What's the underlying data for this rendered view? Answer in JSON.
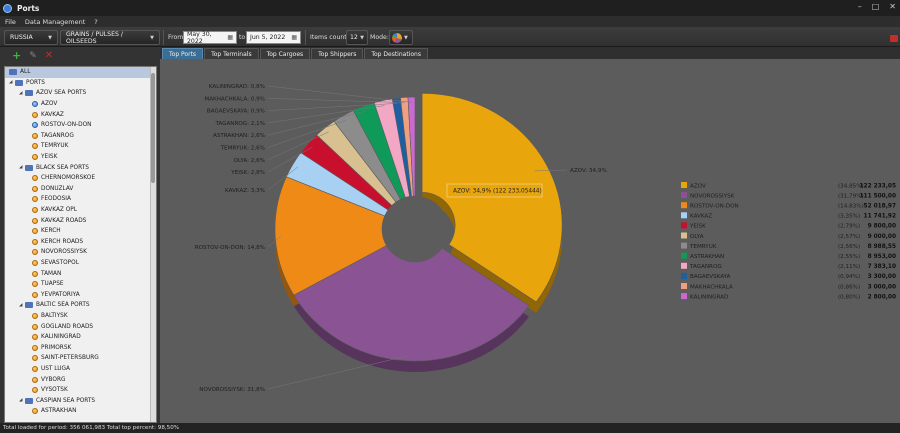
{
  "window": {
    "title": "Ports"
  },
  "menu": {
    "file": "File",
    "data_management": "Data Management",
    "help": "?"
  },
  "toolbar": {
    "country": "RUSSIA",
    "cargo_group": "GRAINS / PULSES / OILSEEDS",
    "from_label": "From",
    "from_date": "May 30, 2022",
    "to_label": "to",
    "to_date": "Jun 5, 2022",
    "items_count_label": "Items count:",
    "items_count": "12",
    "mode_label": "Mode:"
  },
  "tree": {
    "root": "ALL",
    "items": [
      {
        "label": "PORTS",
        "level": 1,
        "type": "folder"
      },
      {
        "label": "AZOV SEA PORTS",
        "level": 2,
        "type": "folder"
      },
      {
        "label": "AZOV",
        "level": 3,
        "type": "port-blue"
      },
      {
        "label": "KAVKAZ",
        "level": 3,
        "type": "port"
      },
      {
        "label": "ROSTOV-ON-DON",
        "level": 3,
        "type": "port-blue"
      },
      {
        "label": "TAGANROG",
        "level": 3,
        "type": "port"
      },
      {
        "label": "TEMRYUK",
        "level": 3,
        "type": "port"
      },
      {
        "label": "YEISK",
        "level": 3,
        "type": "port"
      },
      {
        "label": "BLACK SEA PORTS",
        "level": 2,
        "type": "folder"
      },
      {
        "label": "CHERNOMORSKOE",
        "level": 3,
        "type": "port"
      },
      {
        "label": "DONUZLAV",
        "level": 3,
        "type": "port"
      },
      {
        "label": "FEODOSIA",
        "level": 3,
        "type": "port"
      },
      {
        "label": "KAVKAZ OPL",
        "level": 3,
        "type": "port"
      },
      {
        "label": "KAVKAZ ROADS",
        "level": 3,
        "type": "port"
      },
      {
        "label": "KERCH",
        "level": 3,
        "type": "port"
      },
      {
        "label": "KERCH ROADS",
        "level": 3,
        "type": "port"
      },
      {
        "label": "NOVOROSSIYSK",
        "level": 3,
        "type": "port"
      },
      {
        "label": "SEVASTOPOL",
        "level": 3,
        "type": "port"
      },
      {
        "label": "TAMAN",
        "level": 3,
        "type": "port"
      },
      {
        "label": "TUAPSE",
        "level": 3,
        "type": "port"
      },
      {
        "label": "YEVPATORIYA",
        "level": 3,
        "type": "port"
      },
      {
        "label": "BALTIC SEA PORTS",
        "level": 2,
        "type": "folder"
      },
      {
        "label": "BALTIYSK",
        "level": 3,
        "type": "port"
      },
      {
        "label": "GOGLAND ROADS",
        "level": 3,
        "type": "port"
      },
      {
        "label": "KALININGRAD",
        "level": 3,
        "type": "port"
      },
      {
        "label": "PRIMORSK",
        "level": 3,
        "type": "port"
      },
      {
        "label": "SAINT-PETERSBURG",
        "level": 3,
        "type": "port"
      },
      {
        "label": "UST LUGA",
        "level": 3,
        "type": "port"
      },
      {
        "label": "VYBORG",
        "level": 3,
        "type": "port"
      },
      {
        "label": "VYSOTSK",
        "level": 3,
        "type": "port"
      },
      {
        "label": "CASPIAN SEA PORTS",
        "level": 2,
        "type": "folder"
      },
      {
        "label": "ASTRAKHAN",
        "level": 3,
        "type": "port"
      }
    ]
  },
  "tabs": [
    "Top Ports",
    "Top Terminals",
    "Top Cargoes",
    "Top Shippers",
    "Top Destinations"
  ],
  "tooltip": "AZOV: 34,9% (122 233,05444)",
  "status": "Total loaded for period: 356 061,983 Total top percent: 98,50%",
  "chart_data": {
    "type": "pie",
    "style": "donut-3d",
    "slices": [
      {
        "name": "AZOV",
        "percent": 34.85,
        "value": 122233.05,
        "pct_label": "(34,85%)",
        "value_label": "122 233,05",
        "callout": "AZOV: 34,9%",
        "color": "#e8a50c"
      },
      {
        "name": "NOVOROSSIYSK",
        "percent": 31.79,
        "value": 111500.0,
        "pct_label": "(31,79%)",
        "value_label": "111 500,00",
        "callout": "NOVOROSSIYSK: 31,8%",
        "color": "#8a5494"
      },
      {
        "name": "ROSTOV-ON-DON",
        "percent": 14.83,
        "value": 52018.97,
        "pct_label": "(14,83%)",
        "value_label": "52 018,97",
        "callout": "ROSTOV-ON-DON: 14,8%",
        "color": "#f08a16"
      },
      {
        "name": "KAVKAZ",
        "percent": 3.35,
        "value": 11741.92,
        "pct_label": "(3,35%)",
        "value_label": "11 741,92",
        "callout": "KAVKAZ: 3,3%",
        "color": "#a8d0f2"
      },
      {
        "name": "YEISK",
        "percent": 2.79,
        "value": 9800.0,
        "pct_label": "(2,79%)",
        "value_label": "9 800,00",
        "callout": "YEISK: 2,8%",
        "color": "#c8102e"
      },
      {
        "name": "OLYA",
        "percent": 2.57,
        "value": 9000.0,
        "pct_label": "(2,57%)",
        "value_label": "9 000,00",
        "callout": "OLYA: 2,6%",
        "color": "#d9c090"
      },
      {
        "name": "TEMRYUK",
        "percent": 2.56,
        "value": 8988.55,
        "pct_label": "(2,56%)",
        "value_label": "8 988,55",
        "callout": "TEMRYUK: 2,6%",
        "color": "#8c8c8c"
      },
      {
        "name": "ASTRAKHAN",
        "percent": 2.55,
        "value": 8953.0,
        "pct_label": "(2,55%)",
        "value_label": "8 953,00",
        "callout": "ASTRAKHAN: 2,6%",
        "color": "#0f9a5a"
      },
      {
        "name": "TAGANROG",
        "percent": 2.11,
        "value": 7383.1,
        "pct_label": "(2,11%)",
        "value_label": "7 383,10",
        "callout": "TAGANROG: 2,1%",
        "color": "#f2a8c4"
      },
      {
        "name": "BAGAEVSKAYA",
        "percent": 0.94,
        "value": 3300.0,
        "pct_label": "(0,94%)",
        "value_label": "3 300,00",
        "callout": "BAGAEVSKAYA: 0,9%",
        "color": "#1d5fa0"
      },
      {
        "name": "MAKHACHKALA",
        "percent": 0.86,
        "value": 3000.0,
        "pct_label": "(0,86%)",
        "value_label": "3 000,00",
        "callout": "MAKHACHKALA: 0,9%",
        "color": "#f0a080"
      },
      {
        "name": "KALININGRAD",
        "percent": 0.8,
        "value": 2800.0,
        "pct_label": "(0,80%)",
        "value_label": "2 800,00",
        "callout": "KALININGRAD: 0,8%",
        "color": "#c86ad0"
      }
    ]
  }
}
